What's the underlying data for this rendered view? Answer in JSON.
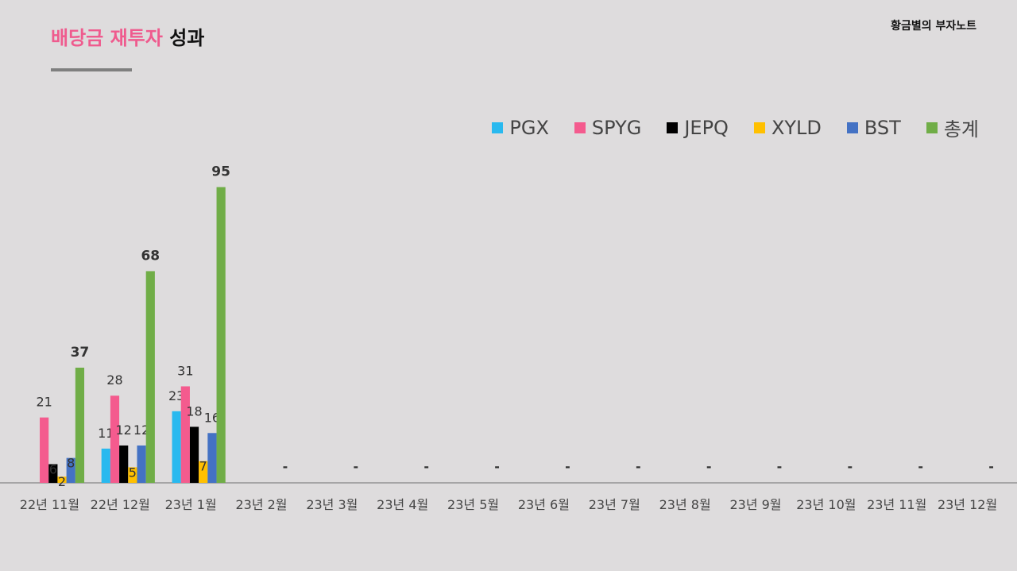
{
  "header": {
    "title_highlight": "배당금 재투자",
    "title_rest": "성과",
    "brand": "황금별의 부자노트"
  },
  "colors": {
    "PGX": "#29b9ef",
    "SPYG": "#f45b8e",
    "JEPQ": "#000000",
    "XYLD": "#ffc000",
    "BST": "#4472c4",
    "총계": "#70ad47"
  },
  "chart_data": {
    "type": "bar",
    "categories": [
      "22년 11월",
      "22년 12월",
      "23년 1월",
      "23년 2월",
      "23년 3월",
      "23년 4월",
      "23년 5월",
      "23년 6월",
      "23년 7월",
      "23년 8월",
      "23년 9월",
      "23년 10월",
      "23년 11월",
      "23년 12월"
    ],
    "series": [
      {
        "name": "PGX",
        "values": [
          null,
          11,
          23,
          null,
          null,
          null,
          null,
          null,
          null,
          null,
          null,
          null,
          null,
          null
        ]
      },
      {
        "name": "SPYG",
        "values": [
          21,
          28,
          31,
          null,
          null,
          null,
          null,
          null,
          null,
          null,
          null,
          null,
          null,
          null
        ]
      },
      {
        "name": "JEPQ",
        "values": [
          6,
          12,
          18,
          null,
          null,
          null,
          null,
          null,
          null,
          null,
          null,
          null,
          null,
          null
        ]
      },
      {
        "name": "XYLD",
        "values": [
          2,
          5,
          7,
          null,
          null,
          null,
          null,
          null,
          null,
          null,
          null,
          null,
          null,
          null
        ]
      },
      {
        "name": "BST",
        "values": [
          8,
          12,
          16,
          null,
          null,
          null,
          null,
          null,
          null,
          null,
          null,
          null,
          null,
          null
        ]
      },
      {
        "name": "총계",
        "values": [
          37,
          68,
          95,
          null,
          null,
          null,
          null,
          null,
          null,
          null,
          null,
          null,
          null,
          null
        ]
      }
    ],
    "empty_label": "-",
    "ylim": [
      0,
      100
    ],
    "legend_position": "top-right",
    "grid": false
  }
}
